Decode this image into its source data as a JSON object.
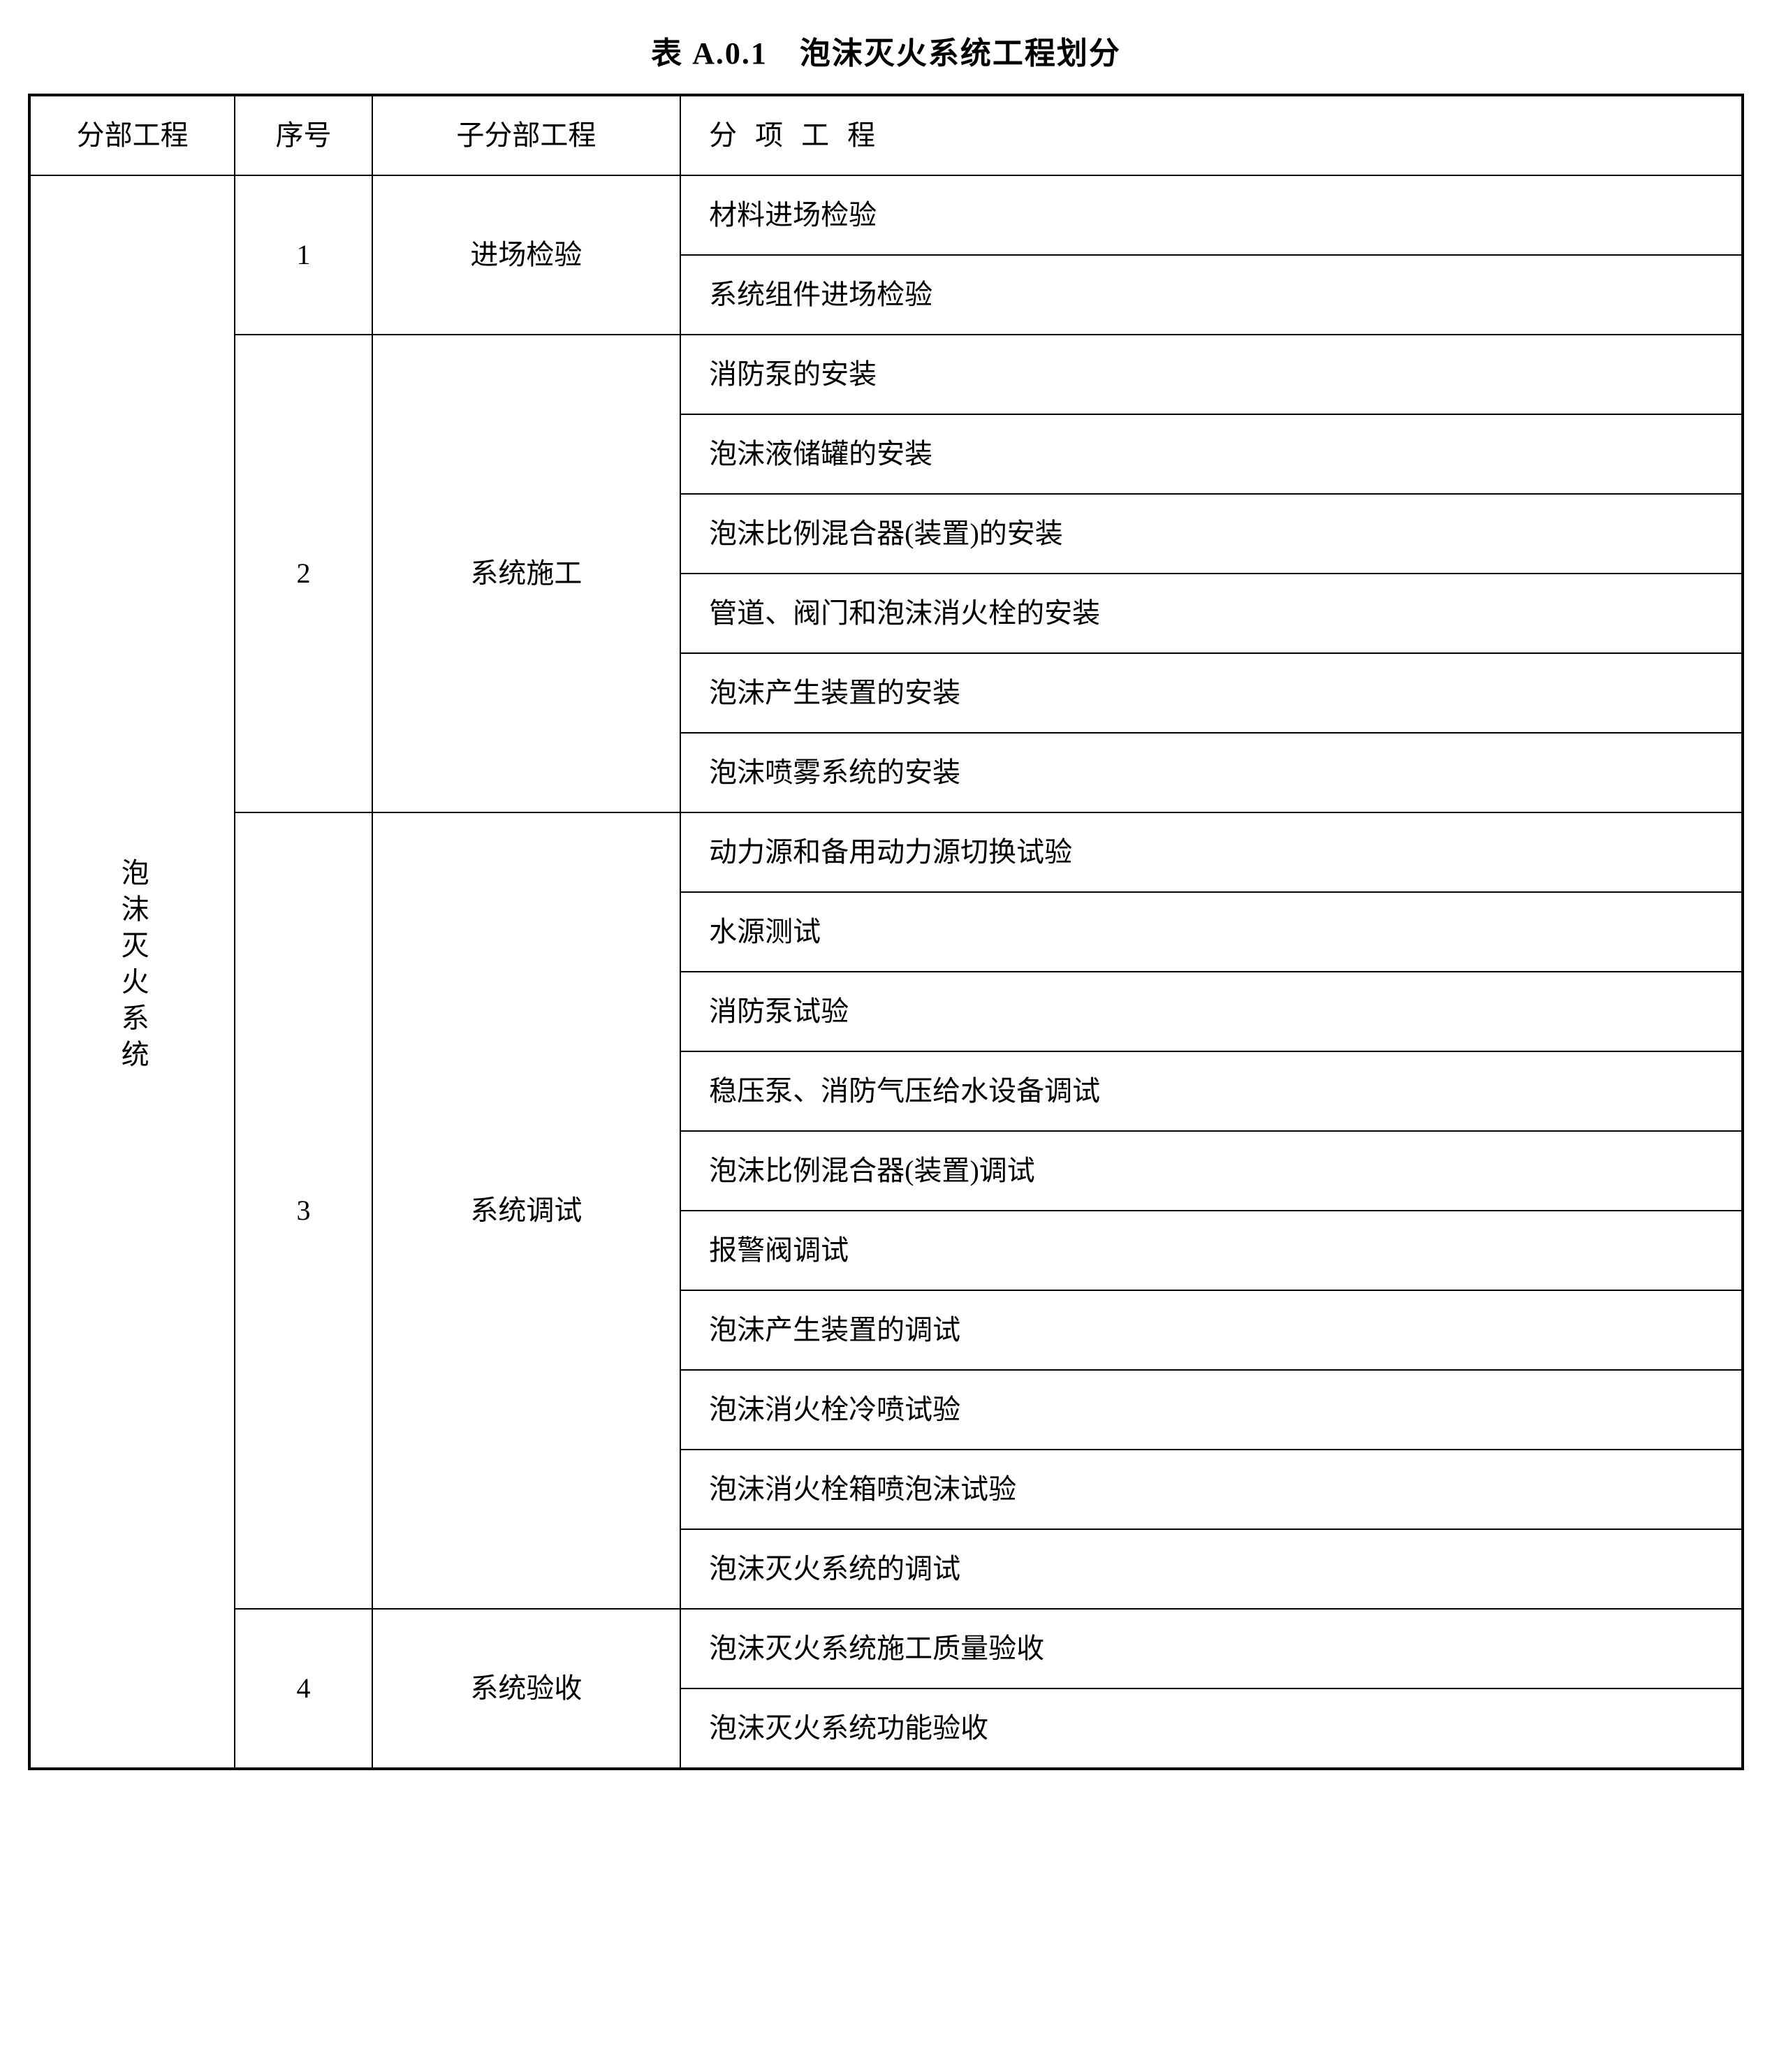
{
  "title": "表 A.0.1　泡沫灭火系统工程划分",
  "headers": {
    "col1": "分部工程",
    "col2": "序号",
    "col3": "子分部工程",
    "col4": "分 项 工 程"
  },
  "division_name": "泡沫灭火系统",
  "sections": [
    {
      "seq": "1",
      "sub_name": "进场检验",
      "items": [
        "材料进场检验",
        "系统组件进场检验"
      ]
    },
    {
      "seq": "2",
      "sub_name": "系统施工",
      "items": [
        "消防泵的安装",
        "泡沫液储罐的安装",
        "泡沫比例混合器(装置)的安装",
        "管道、阀门和泡沫消火栓的安装",
        "泡沫产生装置的安装",
        "泡沫喷雾系统的安装"
      ]
    },
    {
      "seq": "3",
      "sub_name": "系统调试",
      "items": [
        "动力源和备用动力源切换试验",
        "水源测试",
        "消防泵试验",
        "稳压泵、消防气压给水设备调试",
        "泡沫比例混合器(装置)调试",
        "报警阀调试",
        "泡沫产生装置的调试",
        "泡沫消火栓冷喷试验",
        "泡沫消火栓箱喷泡沫试验",
        "泡沫灭火系统的调试"
      ]
    },
    {
      "seq": "4",
      "sub_name": "系统验收",
      "items": [
        "泡沫灭火系统施工质量验收",
        "泡沫灭火系统功能验收"
      ]
    }
  ],
  "styling": {
    "background_color": "#ffffff",
    "text_color": "#000000",
    "border_color": "#000000",
    "title_fontsize": 44,
    "cell_fontsize": 40,
    "outer_border_width": 4,
    "inner_border_width": 2,
    "font_family": "SimSun"
  }
}
